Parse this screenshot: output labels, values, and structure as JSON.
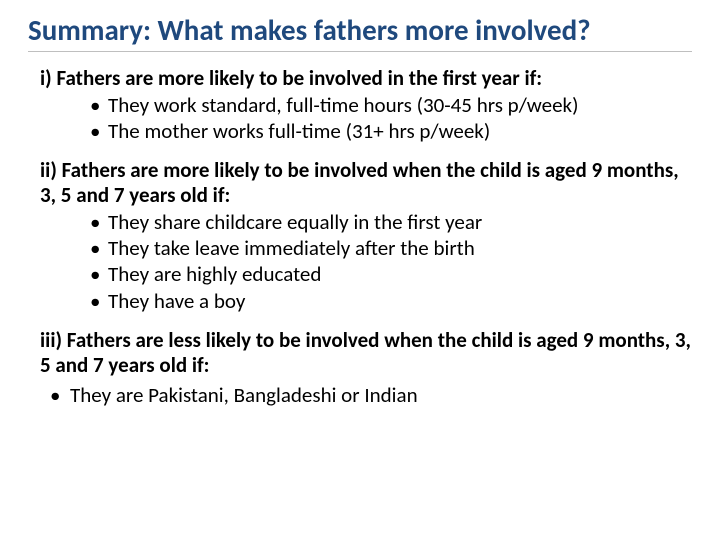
{
  "title": "Summary: What makes fathers more involved?",
  "colors": {
    "title": "#1f497d",
    "rule": "#bfbfbf",
    "body": "#000000",
    "background": "#ffffff"
  },
  "typography": {
    "title_fontsize": 29,
    "title_weight": 700,
    "body_fontsize": 21,
    "heading_weight": 700
  },
  "sections": [
    {
      "heading": "i) Fathers are more likely to be involved in the first year if:",
      "bullets": [
        "They work standard, full-time hours (30-45 hrs p/week)",
        "The mother works full-time (31+ hrs p/week)"
      ],
      "bullet_style": "indented"
    },
    {
      "heading": "ii) Fathers are more likely to be involved when the child is aged 9 months, 3, 5 and 7 years old if:",
      "bullets": [
        "They share childcare equally in the first year",
        "They take leave immediately after the birth",
        "They are highly educated",
        "They have a boy"
      ],
      "bullet_style": "indented"
    },
    {
      "heading": "iii) Fathers are less likely to be involved when the child is aged 9 months, 3, 5 and 7 years old if:",
      "bullets": [
        "They are Pakistani, Bangladeshi or Indian"
      ],
      "bullet_style": "wide"
    }
  ]
}
